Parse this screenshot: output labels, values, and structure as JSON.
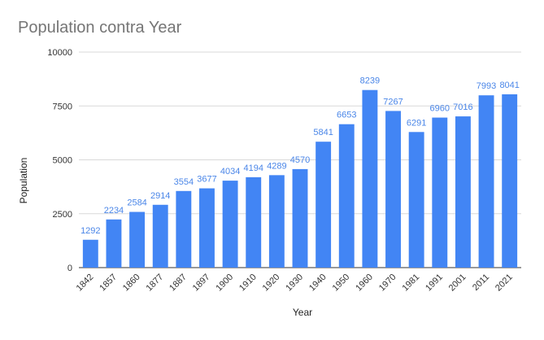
{
  "chart_data": {
    "type": "bar",
    "title": "Population contra Year",
    "xlabel": "Year",
    "ylabel": "Population",
    "categories": [
      "1842",
      "1857",
      "1860",
      "1877",
      "1887",
      "1897",
      "1900",
      "1910",
      "1920",
      "1930",
      "1940",
      "1950",
      "1960",
      "1970",
      "1981",
      "1991",
      "2001",
      "2011",
      "2021"
    ],
    "values": [
      1292,
      2234,
      2584,
      2914,
      3554,
      3677,
      4034,
      4194,
      4289,
      4570,
      5841,
      6653,
      8239,
      7267,
      6291,
      6960,
      7016,
      7993,
      8041
    ],
    "ylim": [
      0,
      10000
    ],
    "yticks": [
      0,
      2500,
      5000,
      7500,
      10000
    ],
    "grid": true,
    "legend": "none",
    "bar_color": "#4285f4",
    "label_color": "#4a86e8",
    "title_color": "#757575"
  }
}
